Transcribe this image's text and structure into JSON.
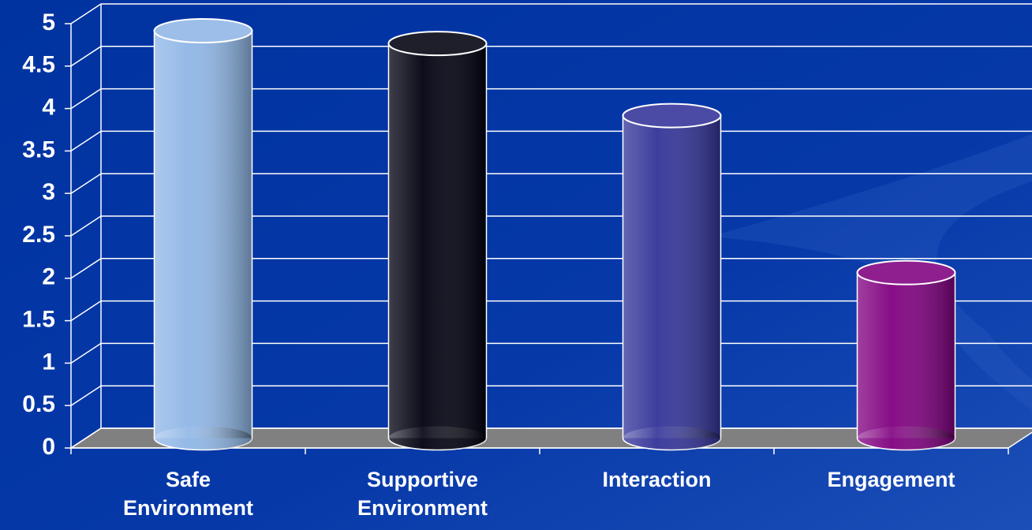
{
  "chart_data": {
    "type": "bar",
    "categories": [
      "Safe Environment",
      "Supportive Environment",
      "Interaction",
      "Engagement"
    ],
    "values": [
      4.8,
      4.65,
      3.8,
      1.95
    ],
    "colors": [
      "#8fb6e6",
      "#00000f",
      "#333399",
      "#800080"
    ],
    "ylim": [
      0,
      5
    ],
    "yticks": [
      0,
      0.5,
      1,
      1.5,
      2,
      2.5,
      3,
      3.5,
      4,
      4.5,
      5
    ],
    "grid": true
  }
}
